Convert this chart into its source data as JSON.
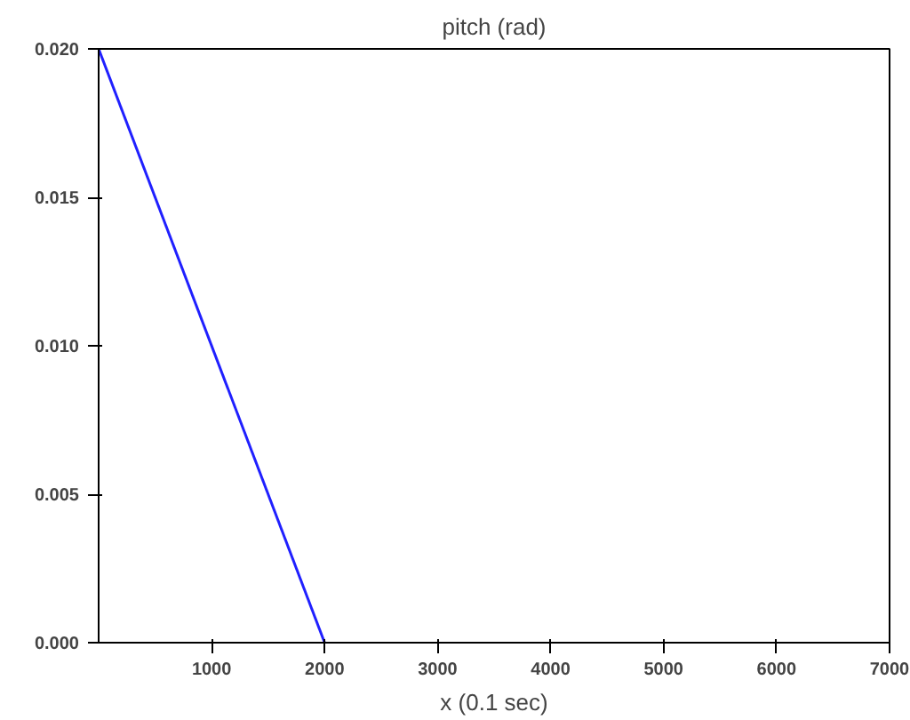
{
  "chart_data": {
    "type": "line",
    "title": "pitch (rad)",
    "xlabel": "x (0.1 sec)",
    "series": [
      {
        "color": "#2020ff",
        "x": [
          0,
          2000
        ],
        "values": [
          0.02,
          0.0
        ]
      }
    ],
    "xlim": [
      0,
      7000
    ],
    "ylim": [
      0,
      0.02
    ],
    "xticks": [
      1000,
      2000,
      3000,
      4000,
      5000,
      6000,
      7000
    ],
    "yticks": [
      {
        "value": 0,
        "label": "0.000"
      },
      {
        "value": 0.005,
        "label": "0.005"
      },
      {
        "value": 0.01,
        "label": "0.010"
      },
      {
        "value": 0.015,
        "label": "0.015"
      },
      {
        "value": 0.02,
        "label": "0.020"
      }
    ],
    "grid": false,
    "marker": "none",
    "line_style": "solid"
  }
}
